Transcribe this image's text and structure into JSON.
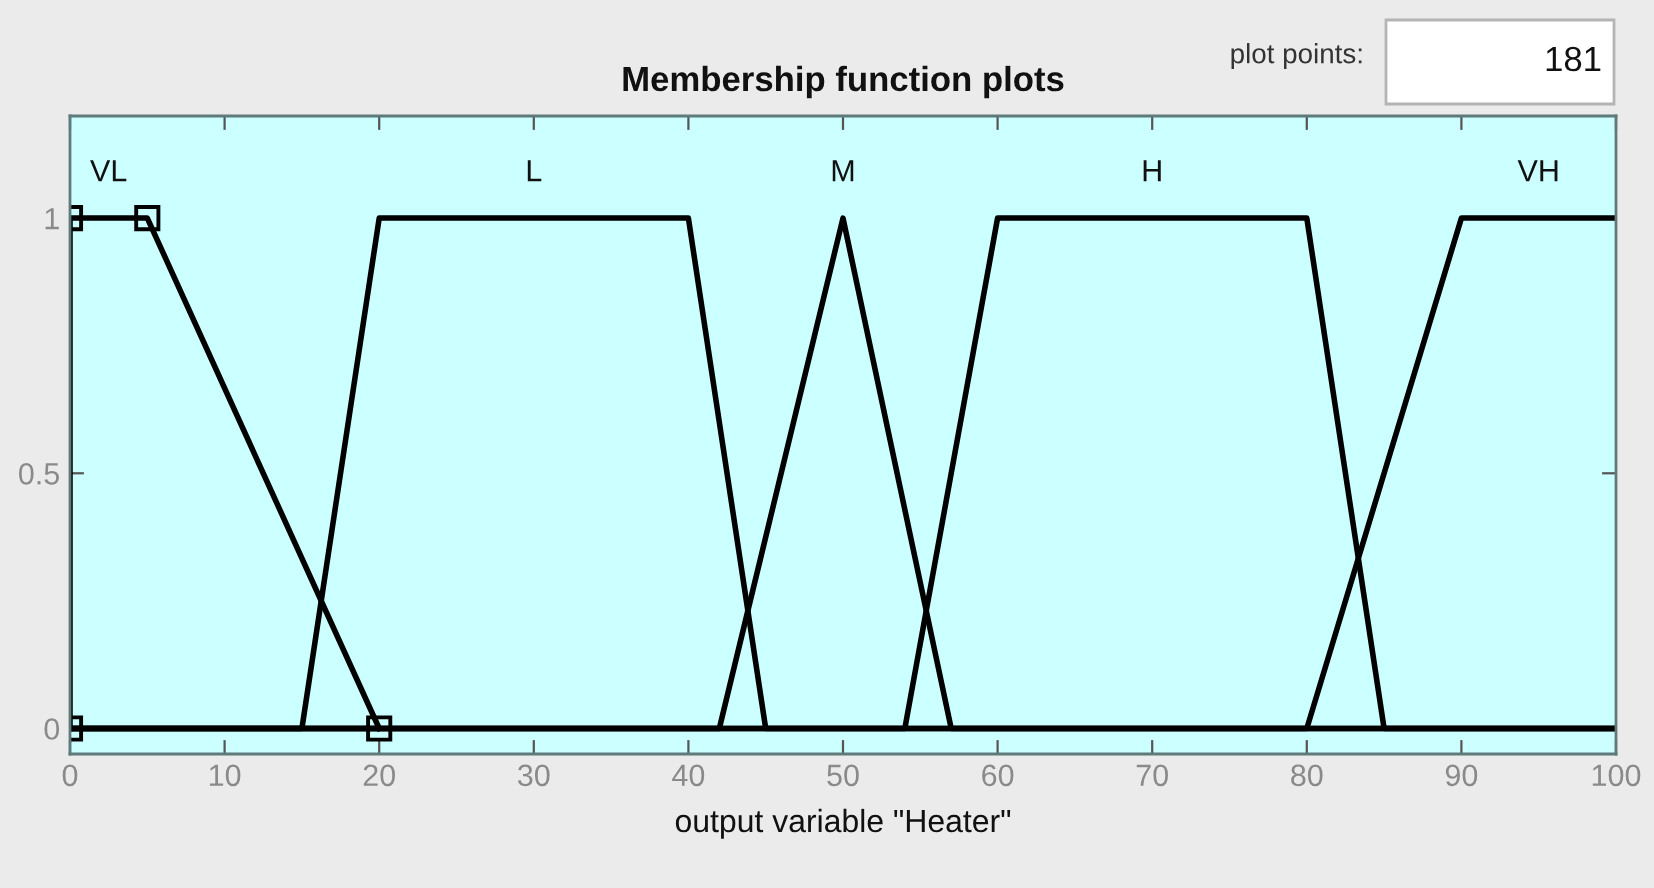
{
  "chart_data": {
    "type": "line",
    "title": "Membership function plots",
    "xlabel": "output variable \"Heater\"",
    "xlim": [
      0,
      100
    ],
    "xticks": [
      0,
      10,
      20,
      30,
      40,
      50,
      60,
      70,
      80,
      90,
      100
    ],
    "ylim": [
      -0.05,
      1.2
    ],
    "yticks": [
      0,
      0.5,
      1
    ],
    "grid": false,
    "line_style": "solid",
    "annotations": [
      "plot points:",
      "181"
    ],
    "series": [
      {
        "name": "VL",
        "color": "#000000",
        "x": [
          0,
          0,
          5,
          20
        ],
        "values": [
          0,
          1,
          1,
          0
        ],
        "marker": "square"
      },
      {
        "name": "L",
        "color": "#000000",
        "x": [
          0,
          15,
          20,
          40,
          45,
          100
        ],
        "values": [
          0,
          0,
          1,
          1,
          0,
          0
        ],
        "marker": "none"
      },
      {
        "name": "M",
        "color": "#000000",
        "x": [
          0,
          42,
          50,
          57,
          100
        ],
        "values": [
          0,
          0,
          1,
          0,
          0
        ],
        "marker": "none"
      },
      {
        "name": "H",
        "color": "#000000",
        "x": [
          0,
          54,
          60,
          80,
          85,
          100
        ],
        "values": [
          0,
          0,
          1,
          1,
          0,
          0
        ],
        "marker": "none"
      },
      {
        "name": "VH",
        "color": "#000000",
        "x": [
          0,
          80,
          90,
          100
        ],
        "values": [
          0,
          0,
          1,
          1
        ],
        "marker": "none"
      }
    ]
  }
}
